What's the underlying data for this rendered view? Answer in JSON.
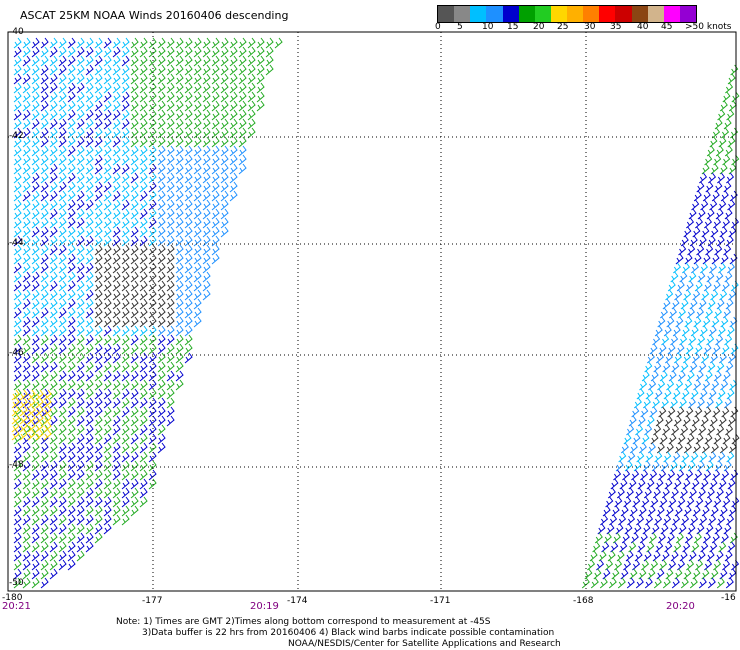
{
  "title": "ASCAT 25KM NOAA Winds 20160406 descending",
  "legend": {
    "colors": [
      "#555555",
      "#888888",
      "#00bfff",
      "#1e90ff",
      "#0000cd",
      "#00a000",
      "#22cc22",
      "#ffd700",
      "#ffb000",
      "#ff8000",
      "#ff0000",
      "#cc0000",
      "#8b4513",
      "#d2b48c",
      "#ff00ff",
      "#9400d3"
    ],
    "labels": [
      "0",
      "5",
      "10",
      "15",
      "20",
      "25",
      "30",
      "35",
      "40",
      "45",
      ">50 knots"
    ]
  },
  "axes": {
    "x_labels": [
      "-180",
      "-177",
      "-174",
      "-171",
      "-168",
      "-16"
    ],
    "y_labels": [
      "-40",
      "-42",
      "-44",
      "-46",
      "-48",
      "-50"
    ]
  },
  "times": {
    "left": "20:21",
    "middle": "20:19",
    "right": "20:20"
  },
  "notes": {
    "line1": "Note: 1) Times are GMT 2)Times along bottom correspond to measurement at -45S",
    "line2": "3)Data buffer is 22 hrs from 20160406 4) Black wind barbs indicate possible contamination",
    "line3": "NOAA/NESDIS/Center for Satellite Applications and Research"
  }
}
